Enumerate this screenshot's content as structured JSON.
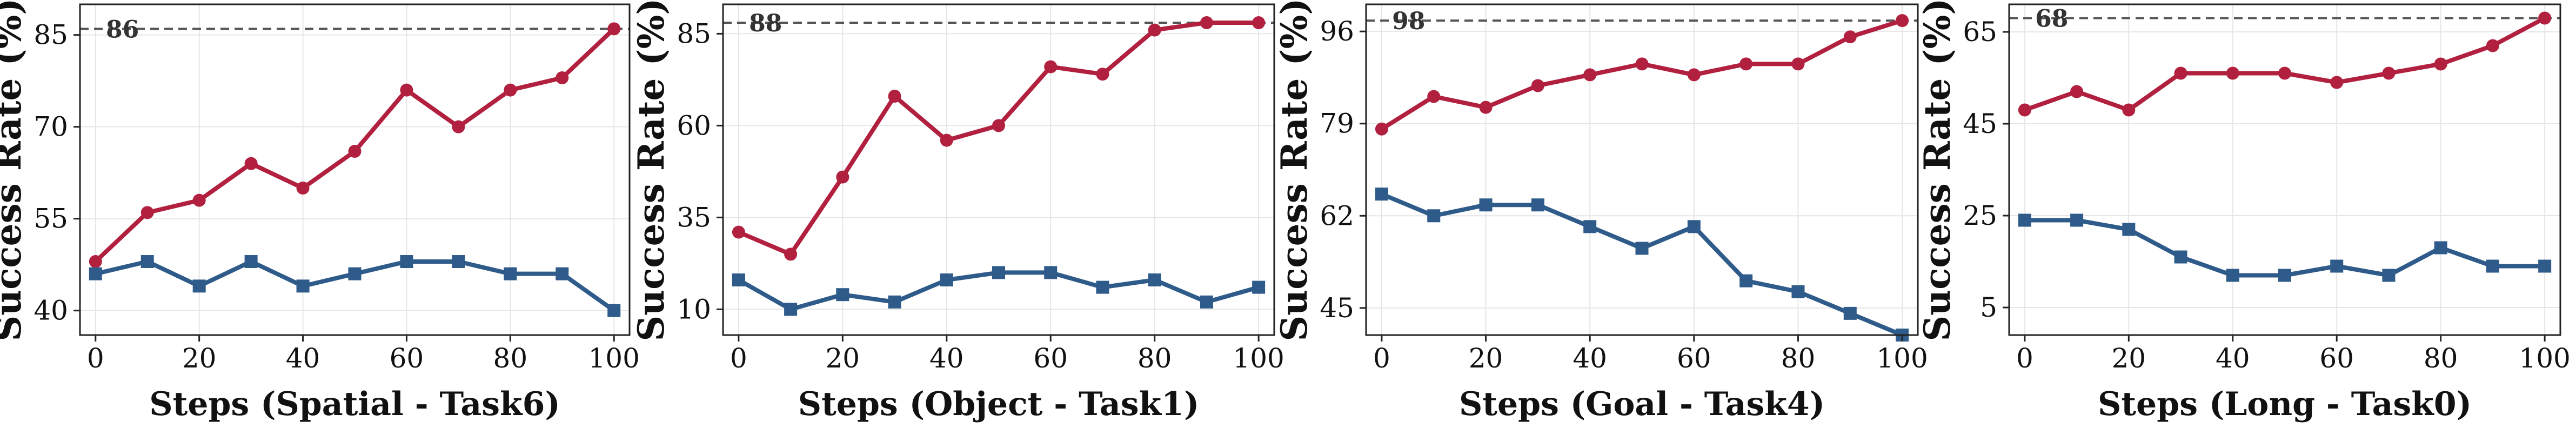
{
  "chart_data": [
    {
      "type": "line",
      "xlabel": "Steps (Spatial - Task6)",
      "ylabel": "Success Rate (%)",
      "x": [
        0,
        10,
        20,
        30,
        40,
        50,
        60,
        70,
        80,
        90,
        100
      ],
      "xticks": [
        0,
        20,
        40,
        60,
        80,
        100
      ],
      "yticks": [
        40,
        55,
        70,
        85
      ],
      "xlim": [
        -3,
        103
      ],
      "ylim": [
        36,
        90
      ],
      "grid": true,
      "series": [
        {
          "values": [
            48,
            56,
            58,
            64,
            60,
            66,
            76,
            70,
            76,
            78,
            86
          ],
          "color": "#B2203F",
          "marker": "circle"
        },
        {
          "values": [
            46,
            48,
            44,
            48,
            44,
            46,
            48,
            48,
            46,
            46,
            40
          ],
          "color": "#2E5B8A",
          "marker": "square"
        }
      ],
      "reference_line": {
        "value": 86,
        "label": "86",
        "style": "dashed"
      }
    },
    {
      "type": "line",
      "xlabel": "Steps (Object - Task1)",
      "ylabel": "Success Rate (%)",
      "x": [
        0,
        10,
        20,
        30,
        40,
        50,
        60,
        70,
        80,
        90,
        100
      ],
      "xticks": [
        0,
        20,
        40,
        60,
        80,
        100
      ],
      "yticks": [
        10,
        35,
        60,
        85
      ],
      "xlim": [
        -3,
        103
      ],
      "ylim": [
        3,
        93
      ],
      "grid": true,
      "series": [
        {
          "values": [
            31,
            25,
            46,
            68,
            56,
            60,
            76,
            74,
            86,
            88,
            88
          ],
          "color": "#B2203F",
          "marker": "circle"
        },
        {
          "values": [
            18,
            10,
            14,
            12,
            18,
            20,
            20,
            16,
            18,
            12,
            16
          ],
          "color": "#2E5B8A",
          "marker": "square"
        }
      ],
      "reference_line": {
        "value": 88,
        "label": "88",
        "style": "dashed"
      }
    },
    {
      "type": "line",
      "xlabel": "Steps (Goal - Task4)",
      "ylabel": "Success Rate (%)",
      "x": [
        0,
        10,
        20,
        30,
        40,
        50,
        60,
        70,
        80,
        90,
        100
      ],
      "xticks": [
        0,
        20,
        40,
        60,
        80,
        100
      ],
      "yticks": [
        45,
        62,
        79,
        96
      ],
      "xlim": [
        -3,
        103
      ],
      "ylim": [
        40,
        101
      ],
      "grid": true,
      "series": [
        {
          "values": [
            78,
            84,
            82,
            86,
            88,
            90,
            88,
            90,
            90,
            95,
            98
          ],
          "color": "#B2203F",
          "marker": "circle"
        },
        {
          "values": [
            66,
            62,
            64,
            64,
            60,
            56,
            60,
            50,
            48,
            44,
            40
          ],
          "color": "#2E5B8A",
          "marker": "square"
        }
      ],
      "reference_line": {
        "value": 98,
        "label": "98",
        "style": "dashed"
      }
    },
    {
      "type": "line",
      "xlabel": "Steps (Long - Task0)",
      "ylabel": "Success Rate (%)",
      "x": [
        0,
        10,
        20,
        30,
        40,
        50,
        60,
        70,
        80,
        90,
        100
      ],
      "xticks": [
        0,
        20,
        40,
        60,
        80,
        100
      ],
      "yticks": [
        5,
        25,
        45,
        65
      ],
      "xlim": [
        -3,
        103
      ],
      "ylim": [
        -1,
        71
      ],
      "grid": true,
      "series": [
        {
          "values": [
            48,
            52,
            48,
            56,
            56,
            56,
            54,
            56,
            58,
            62,
            68
          ],
          "color": "#B2203F",
          "marker": "circle"
        },
        {
          "values": [
            24,
            24,
            22,
            16,
            12,
            12,
            14,
            12,
            18,
            14,
            14
          ],
          "color": "#2E5B8A",
          "marker": "square"
        }
      ],
      "reference_line": {
        "value": 68,
        "label": "68",
        "style": "dashed"
      }
    }
  ]
}
